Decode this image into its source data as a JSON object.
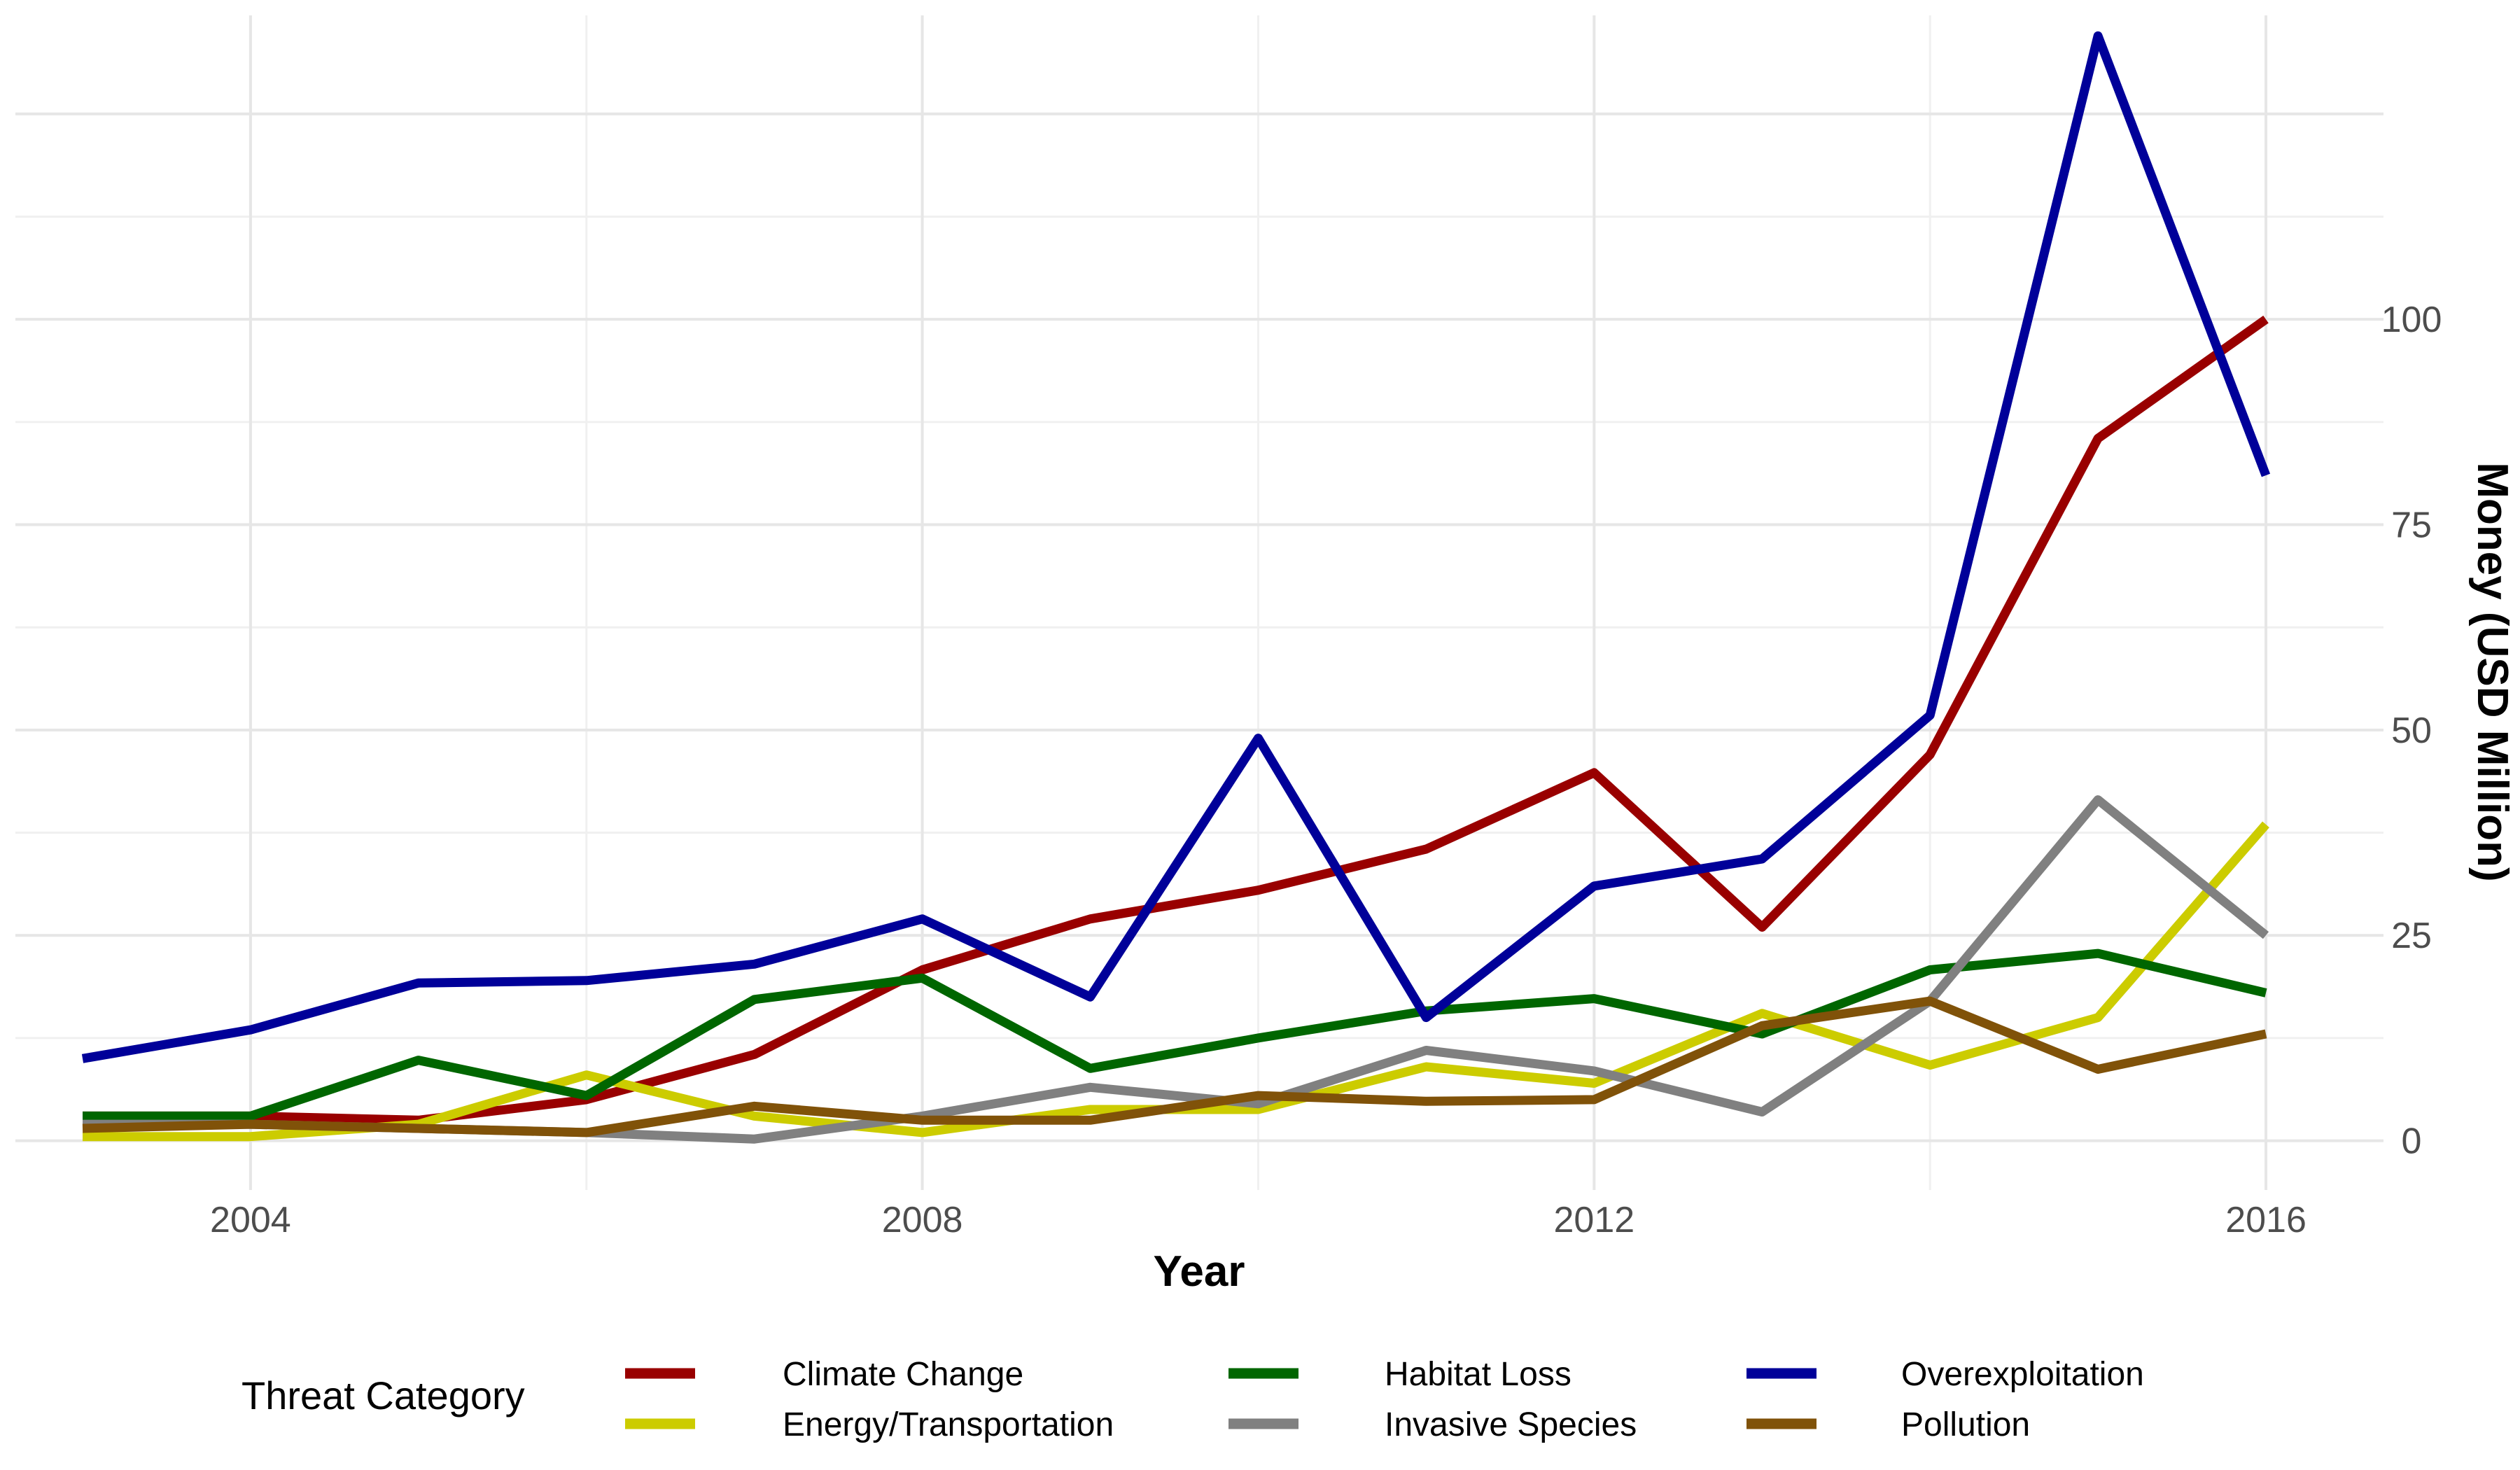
{
  "chart_data": {
    "type": "line",
    "title": "",
    "xlabel": "Year",
    "ylabel": "Money (USD Million)",
    "x": [
      2003,
      2004,
      2005,
      2006,
      2007,
      2008,
      2009,
      2010,
      2011,
      2012,
      2013,
      2014,
      2015,
      2016
    ],
    "xlim": [
      2002.6,
      2016.7
    ],
    "ylim": [
      -6,
      137
    ],
    "x_ticks": [
      2004,
      2008,
      2012,
      2016
    ],
    "y_ticks": [
      0,
      25,
      50,
      75,
      100
    ],
    "y_axis_position": "right",
    "grid": true,
    "legend_title": "Threat Category",
    "legend_position": "bottom",
    "series": [
      {
        "name": "Climate Change",
        "color": "#990000",
        "values": [
          3.0,
          3.0,
          2.5,
          5.0,
          10.5,
          20.8,
          27.0,
          30.5,
          35.5,
          44.8,
          26.0,
          47.0,
          85.5,
          100.0
        ]
      },
      {
        "name": "Energy/Transportation",
        "color": "#cccc00",
        "values": [
          0.5,
          0.5,
          2.0,
          8.0,
          3.0,
          1.0,
          3.8,
          3.8,
          9.0,
          7.0,
          15.5,
          9.2,
          15.0,
          38.5
        ]
      },
      {
        "name": "Habitat Loss",
        "color": "#006600",
        "values": [
          3.0,
          3.0,
          9.8,
          5.5,
          17.2,
          19.8,
          8.8,
          12.5,
          15.8,
          17.3,
          13.0,
          20.8,
          22.8,
          18.0
        ]
      },
      {
        "name": "Invasive Species",
        "color": "#808080",
        "values": [
          2.0,
          2.0,
          1.5,
          1.0,
          0.2,
          3.0,
          6.5,
          4.5,
          11.0,
          8.5,
          3.5,
          17.0,
          41.5,
          25.0
        ]
      },
      {
        "name": "Overexploitation",
        "color": "#000099",
        "values": [
          10.0,
          13.5,
          19.2,
          19.5,
          21.5,
          27.0,
          17.5,
          49.0,
          15.0,
          31.0,
          34.3,
          51.8,
          134.5,
          81.0
        ]
      },
      {
        "name": "Pollution",
        "color": "#805209",
        "values": [
          1.5,
          2.0,
          1.5,
          1.0,
          4.2,
          2.5,
          2.5,
          5.5,
          4.8,
          5.0,
          14.0,
          17.0,
          8.7,
          13.0
        ]
      }
    ]
  }
}
